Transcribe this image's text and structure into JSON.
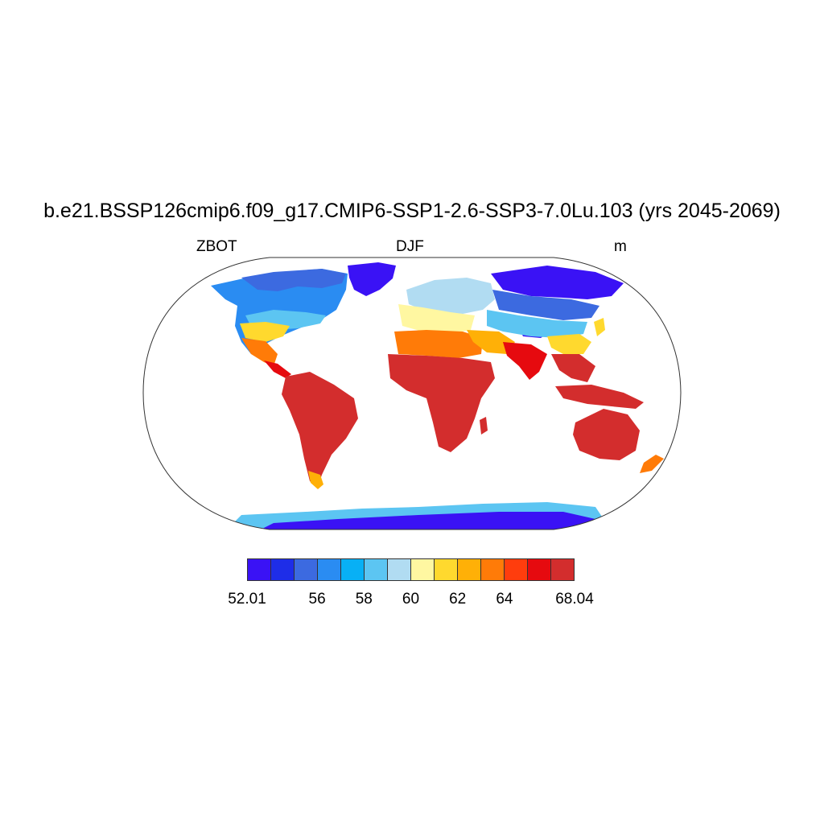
{
  "title": "b.e21.BSSP126cmip6.f09_g17.CMIP6-SSP1-2.6-SSP3-7.0Lu.103 (yrs 2045-2069)",
  "subtitle_left": "ZBOT",
  "subtitle_center": "DJF",
  "subtitle_right": "m",
  "map": {
    "projection": "Robinson",
    "field": "ZBOT",
    "season": "DJF",
    "units": "m",
    "ocean_masked": true,
    "colors": {
      "ocean": "#ffffff",
      "outline": "#222222"
    }
  },
  "colorbar": {
    "min": 52.01,
    "max": 68.04,
    "colors": [
      "#3a12f5",
      "#1e2de8",
      "#3c6ae0",
      "#2a8cf2",
      "#08b0f5",
      "#5cc5f2",
      "#b1dcf2",
      "#fff7a1",
      "#ffd92e",
      "#ffb007",
      "#ff7b08",
      "#ff3d0d",
      "#e60a0f",
      "#d32d2d"
    ],
    "labels": [
      {
        "text": "52.01",
        "frac": 0.0
      },
      {
        "text": "56",
        "frac": 0.214
      },
      {
        "text": "58",
        "frac": 0.357
      },
      {
        "text": "60",
        "frac": 0.5
      },
      {
        "text": "62",
        "frac": 0.643
      },
      {
        "text": "64",
        "frac": 0.786
      },
      {
        "text": "68.04",
        "frac": 1.0
      }
    ]
  }
}
